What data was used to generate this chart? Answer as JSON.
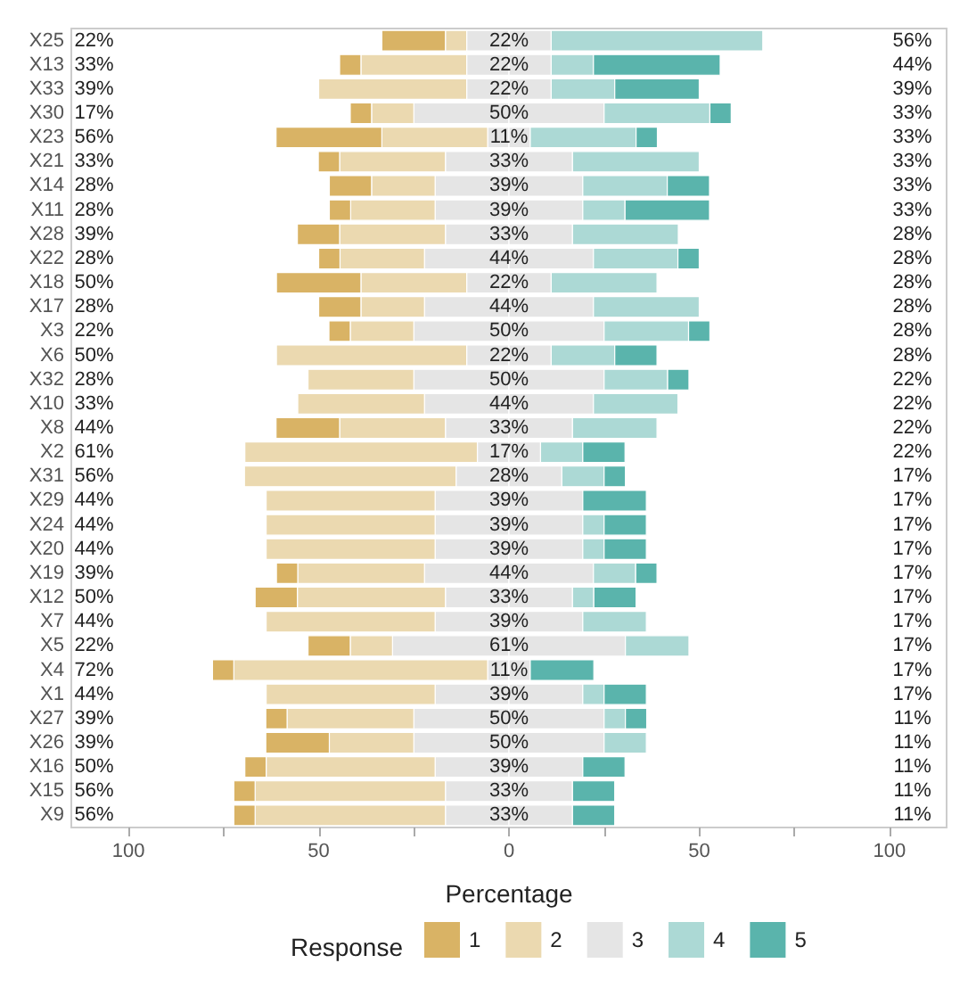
{
  "chart_data": {
    "type": "bar",
    "orientation": "horizontal",
    "stacked": true,
    "xlabel": "Percentage",
    "legend_title": "Response",
    "legend": "bottom",
    "grid": false,
    "categories": [
      "X25",
      "X13",
      "X33",
      "X30",
      "X23",
      "X21",
      "X14",
      "X11",
      "X28",
      "X22",
      "X18",
      "X17",
      "X3",
      "X6",
      "X32",
      "X10",
      "X8",
      "X2",
      "X31",
      "X29",
      "X24",
      "X20",
      "X19",
      "X12",
      "X7",
      "X5",
      "X4",
      "X1",
      "X27",
      "X26",
      "X16",
      "X15",
      "X9"
    ],
    "series": [
      {
        "name": "3",
        "color": "#e5e5e5",
        "values": [
          -11.1,
          -11.1,
          -11.1,
          -25,
          -5.6,
          -16.7,
          -19.4,
          -19.4,
          -16.7,
          -22.2,
          -11.1,
          -22.2,
          -25,
          -11.1,
          -25,
          -22.2,
          -16.7,
          -8.3,
          -13.9,
          -19.4,
          -19.4,
          -19.4,
          -22.2,
          -16.7,
          -19.4,
          -30.6,
          -5.6,
          -19.4,
          -25,
          -25,
          -19.4,
          -16.7,
          -16.7
        ]
      },
      {
        "name": "2",
        "color": "#ebd9b0",
        "values": [
          -5.6,
          -27.8,
          -38.9,
          -11.1,
          -27.8,
          -27.8,
          -16.7,
          -22.2,
          -27.8,
          -22.2,
          -27.8,
          -16.7,
          -16.7,
          -50,
          -27.8,
          -33.3,
          -27.8,
          -61.1,
          -55.6,
          -44.4,
          -44.4,
          -44.4,
          -33.3,
          -38.9,
          -44.4,
          -11.1,
          -66.7,
          -44.4,
          -33.3,
          -22.2,
          -44.4,
          -50,
          -50
        ]
      },
      {
        "name": "1",
        "color": "#d9b365",
        "values": [
          -16.7,
          -5.6,
          0,
          -5.6,
          -27.8,
          -5.6,
          -11.1,
          -5.6,
          -11.1,
          -5.6,
          -22.2,
          -11.1,
          -5.6,
          0,
          0,
          0,
          -16.7,
          0,
          0,
          0,
          0,
          0,
          -5.6,
          -11.1,
          0,
          -11.1,
          -5.6,
          0,
          -5.6,
          -16.7,
          -5.6,
          -5.6,
          -5.6
        ]
      },
      {
        "color": "#e5e5e5",
        "values": [
          11.1,
          11.1,
          11.1,
          25,
          5.6,
          16.7,
          19.4,
          19.4,
          16.7,
          22.2,
          11.1,
          22.2,
          25,
          11.1,
          25,
          22.2,
          16.7,
          8.3,
          13.9,
          19.4,
          19.4,
          19.4,
          22.2,
          16.7,
          19.4,
          30.6,
          5.6,
          19.4,
          25,
          25,
          19.4,
          16.7,
          16.7
        ]
      },
      {
        "name": "4",
        "color": "#acd9d5",
        "values": [
          55.6,
          11.1,
          16.7,
          27.8,
          27.8,
          33.3,
          22.2,
          11.1,
          27.8,
          22.2,
          27.8,
          27.8,
          22.2,
          16.7,
          16.7,
          22.2,
          22.2,
          11.1,
          11.1,
          0,
          5.6,
          5.6,
          11.1,
          5.6,
          16.7,
          16.7,
          0,
          5.6,
          5.6,
          11.1,
          0,
          0,
          0
        ]
      },
      {
        "name": "5",
        "color": "#5ab4ac",
        "values": [
          0,
          33.3,
          22.2,
          5.6,
          5.6,
          0,
          11.1,
          22.2,
          0,
          5.6,
          0,
          0,
          5.6,
          11.1,
          5.6,
          0,
          0,
          11.1,
          5.6,
          16.7,
          11.1,
          11.1,
          5.6,
          11.1,
          0,
          0,
          16.7,
          11.1,
          5.6,
          0,
          11.1,
          11.1,
          11.1
        ]
      }
    ],
    "xlim": [
      -115,
      115
    ],
    "xticks": [
      {
        "value": -100,
        "label": "100"
      },
      {
        "value": -75,
        "label": null
      },
      {
        "value": -50,
        "label": "50"
      },
      {
        "value": -25,
        "label": null
      },
      0,
      {
        "value": 25,
        "label": null
      },
      50,
      {
        "value": 75,
        "label": null
      },
      100
    ],
    "annotations": [
      "22%",
      "22%",
      "56%",
      "33%",
      "22%",
      "44%",
      "39%",
      "22%",
      "39%",
      "17%",
      "50%",
      "33%",
      "56%",
      "11%",
      "33%",
      "33%",
      "33%",
      "33%",
      "28%",
      "39%",
      "33%",
      "28%",
      "39%",
      "33%",
      "39%",
      "33%",
      "28%",
      "28%",
      "44%",
      "28%",
      "50%",
      "22%",
      "28%",
      "28%",
      "44%",
      "28%",
      "22%",
      "50%",
      "28%",
      "50%",
      "22%",
      "28%",
      "28%",
      "50%",
      "22%",
      "33%",
      "44%",
      "22%",
      "44%",
      "33%",
      "22%",
      "61%",
      "17%",
      "22%",
      "56%",
      "28%",
      "17%",
      "44%",
      "39%",
      "17%",
      "44%",
      "39%",
      "17%",
      "44%",
      "39%",
      "17%",
      "39%",
      "44%",
      "17%",
      "50%",
      "33%",
      "17%",
      "44%",
      "39%",
      "17%",
      "22%",
      "61%",
      "17%",
      "72%",
      "11%",
      "17%",
      "44%",
      "39%",
      "17%",
      "39%",
      "50%",
      "11%",
      "39%",
      "50%",
      "11%",
      "50%",
      "39%",
      "11%",
      "56%",
      "33%",
      "11%",
      "56%",
      "33%",
      "11%"
    ]
  }
}
